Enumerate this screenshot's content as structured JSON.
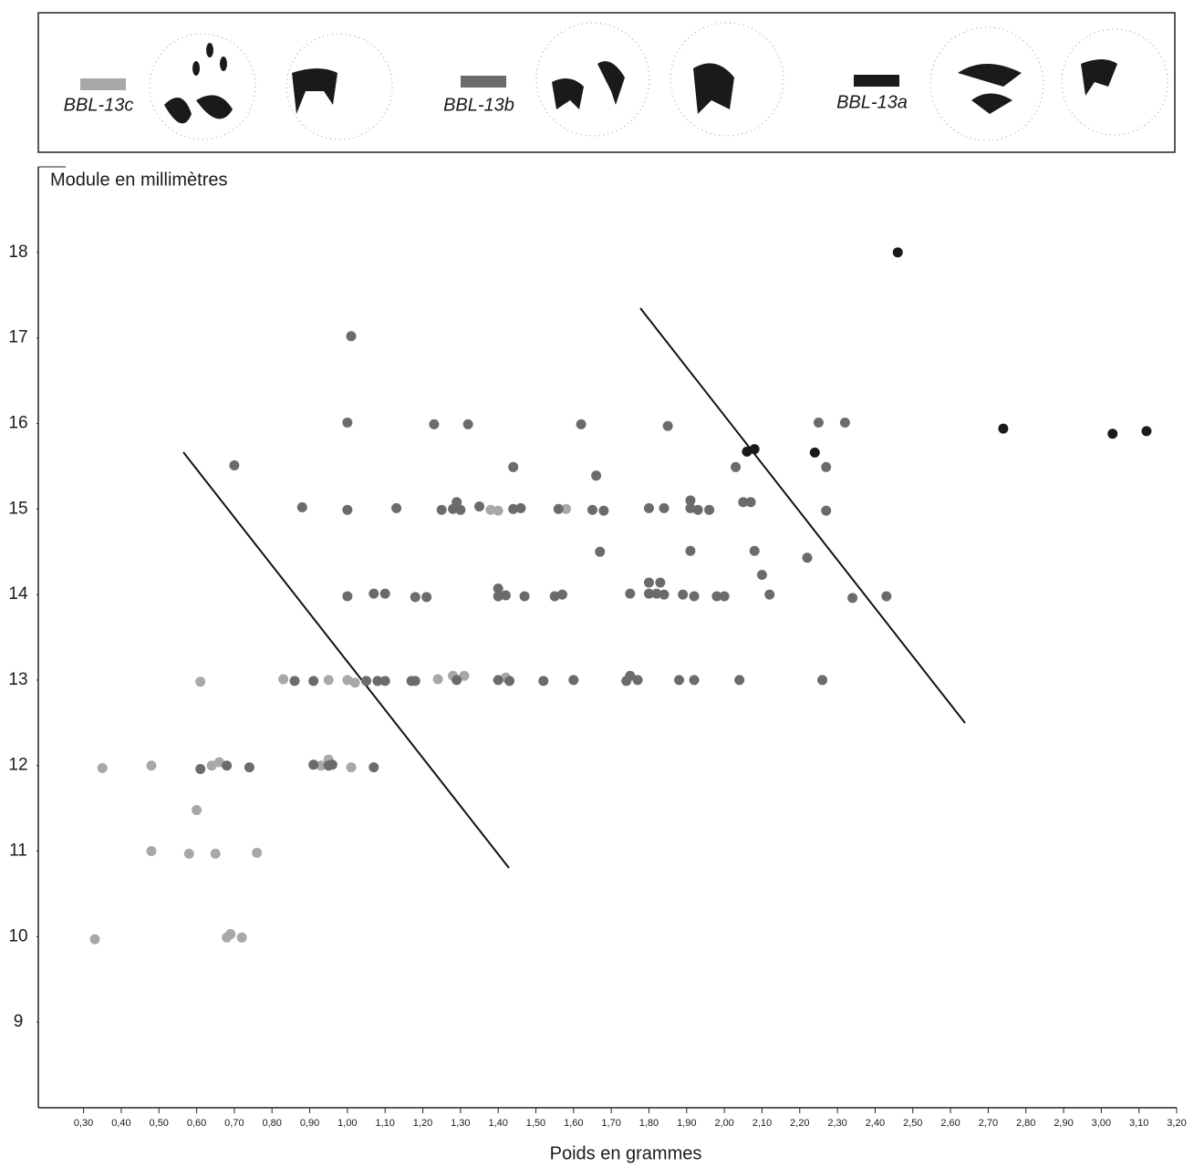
{
  "chart_data": {
    "type": "scatter",
    "x_label": "Poids en grammes",
    "y_label": "Module en millimètres",
    "xlim": [
      0.18,
      3.2
    ],
    "ylim": [
      8,
      19
    ],
    "xticks": [
      {
        "value": 0.3,
        "label": "0,30"
      },
      {
        "value": 0.4,
        "label": "0,40"
      },
      {
        "value": 0.5,
        "label": "0,50"
      },
      {
        "value": 0.6,
        "label": "0,60"
      },
      {
        "value": 0.7,
        "label": "0,70"
      },
      {
        "value": 0.8,
        "label": "0,80"
      },
      {
        "value": 0.9,
        "label": "0,90"
      },
      {
        "value": 1.0,
        "label": "1,00"
      },
      {
        "value": 1.1,
        "label": "1,10"
      },
      {
        "value": 1.2,
        "label": "1,20"
      },
      {
        "value": 1.3,
        "label": "1,30"
      },
      {
        "value": 1.4,
        "label": "1,40"
      },
      {
        "value": 1.5,
        "label": "1,50"
      },
      {
        "value": 1.6,
        "label": "1,60"
      },
      {
        "value": 1.7,
        "label": "1,70"
      },
      {
        "value": 1.8,
        "label": "1,80"
      },
      {
        "value": 1.9,
        "label": "1,90"
      },
      {
        "value": 2.0,
        "label": "2,00"
      },
      {
        "value": 2.1,
        "label": "2,10"
      },
      {
        "value": 2.2,
        "label": "2,20"
      },
      {
        "value": 2.3,
        "label": "2,30"
      },
      {
        "value": 2.4,
        "label": "2,40"
      },
      {
        "value": 2.5,
        "label": "2,50"
      },
      {
        "value": 2.6,
        "label": "2,60"
      },
      {
        "value": 2.7,
        "label": "2,70"
      },
      {
        "value": 2.8,
        "label": "2,80"
      },
      {
        "value": 2.9,
        "label": "2,90"
      },
      {
        "value": 3.0,
        "label": "3,00"
      },
      {
        "value": 3.1,
        "label": "3,10"
      },
      {
        "value": 3.2,
        "label": "3,20"
      }
    ],
    "yticks": [
      9,
      10,
      11,
      12,
      13,
      14,
      15,
      16,
      17,
      18
    ],
    "series": [
      {
        "name": "BBL-13c",
        "color": "#a8a8a8",
        "x": [
          0.33,
          0.35,
          0.48,
          0.48,
          0.58,
          0.61,
          0.6,
          0.65,
          0.66,
          0.64,
          0.68,
          0.69,
          0.72,
          0.76,
          0.83,
          0.95,
          0.95,
          0.93,
          1.0,
          1.02,
          1.01,
          1.24,
          1.28,
          1.31,
          1.38,
          1.4,
          1.42,
          1.58
        ],
        "y": [
          9.97,
          11.97,
          12.0,
          11.0,
          10.97,
          12.98,
          11.48,
          10.97,
          12.04,
          12.0,
          9.99,
          10.03,
          9.99,
          10.98,
          13.01,
          13.0,
          12.07,
          12.0,
          13.0,
          12.97,
          11.98,
          13.01,
          13.05,
          13.05,
          14.99,
          14.98,
          13.03,
          15.0
        ]
      },
      {
        "name": "BBL-13b",
        "color": "#6b6b6b",
        "x": [
          0.7,
          1.01,
          1.0,
          0.88,
          1.0,
          1.13,
          1.0,
          1.07,
          1.1,
          1.18,
          1.21,
          0.86,
          0.91,
          1.05,
          1.08,
          1.1,
          1.17,
          1.18,
          1.29,
          1.4,
          1.43,
          1.52,
          1.6,
          0.91,
          0.95,
          0.96,
          1.07,
          0.61,
          0.68,
          0.74,
          1.23,
          1.32,
          1.25,
          1.28,
          1.29,
          1.3,
          1.35,
          1.44,
          1.46,
          1.44,
          1.4,
          1.4,
          1.42,
          1.47,
          1.55,
          1.57,
          1.56,
          1.62,
          1.65,
          1.68,
          1.66,
          1.67,
          1.75,
          1.74,
          1.75,
          1.77,
          1.85,
          1.8,
          1.84,
          1.8,
          1.83,
          1.8,
          1.82,
          1.84,
          1.88,
          1.92,
          1.89,
          1.92,
          1.91,
          1.91,
          1.93,
          1.96,
          1.91,
          1.98,
          2.0,
          2.04,
          2.03,
          2.05,
          2.07,
          2.08,
          2.1,
          2.12,
          2.22,
          2.25,
          2.32,
          2.27,
          2.27,
          2.34,
          2.43,
          2.26
        ],
        "y": [
          15.51,
          17.02,
          16.01,
          15.02,
          14.99,
          15.01,
          13.98,
          14.01,
          14.01,
          13.97,
          13.97,
          12.99,
          12.99,
          12.99,
          12.99,
          12.99,
          12.99,
          12.99,
          13.0,
          13.0,
          12.99,
          12.99,
          13.0,
          12.01,
          12.0,
          12.01,
          11.98,
          11.96,
          12.0,
          11.98,
          15.99,
          15.99,
          14.99,
          15.0,
          15.08,
          14.99,
          15.03,
          15.0,
          15.01,
          15.49,
          14.07,
          13.98,
          13.99,
          13.98,
          13.98,
          14.0,
          15.0,
          15.99,
          14.99,
          14.98,
          15.39,
          14.5,
          14.01,
          12.99,
          13.05,
          13.0,
          15.97,
          15.01,
          15.01,
          14.14,
          14.14,
          14.01,
          14.01,
          14.0,
          13.0,
          13.0,
          14.0,
          13.98,
          15.1,
          15.01,
          14.99,
          14.99,
          14.51,
          13.98,
          13.98,
          13.0,
          15.49,
          15.08,
          15.08,
          14.51,
          14.23,
          14.0,
          14.43,
          16.01,
          16.01,
          15.49,
          14.98,
          13.96,
          13.98,
          13.0
        ]
      },
      {
        "name": "BBL-13a",
        "color": "#1a1a1a",
        "x": [
          2.46,
          2.06,
          2.08,
          2.24,
          2.74,
          3.03,
          3.12
        ],
        "y": [
          18.0,
          15.67,
          15.7,
          15.66,
          15.94,
          15.88,
          15.91
        ]
      }
    ]
  }
}
